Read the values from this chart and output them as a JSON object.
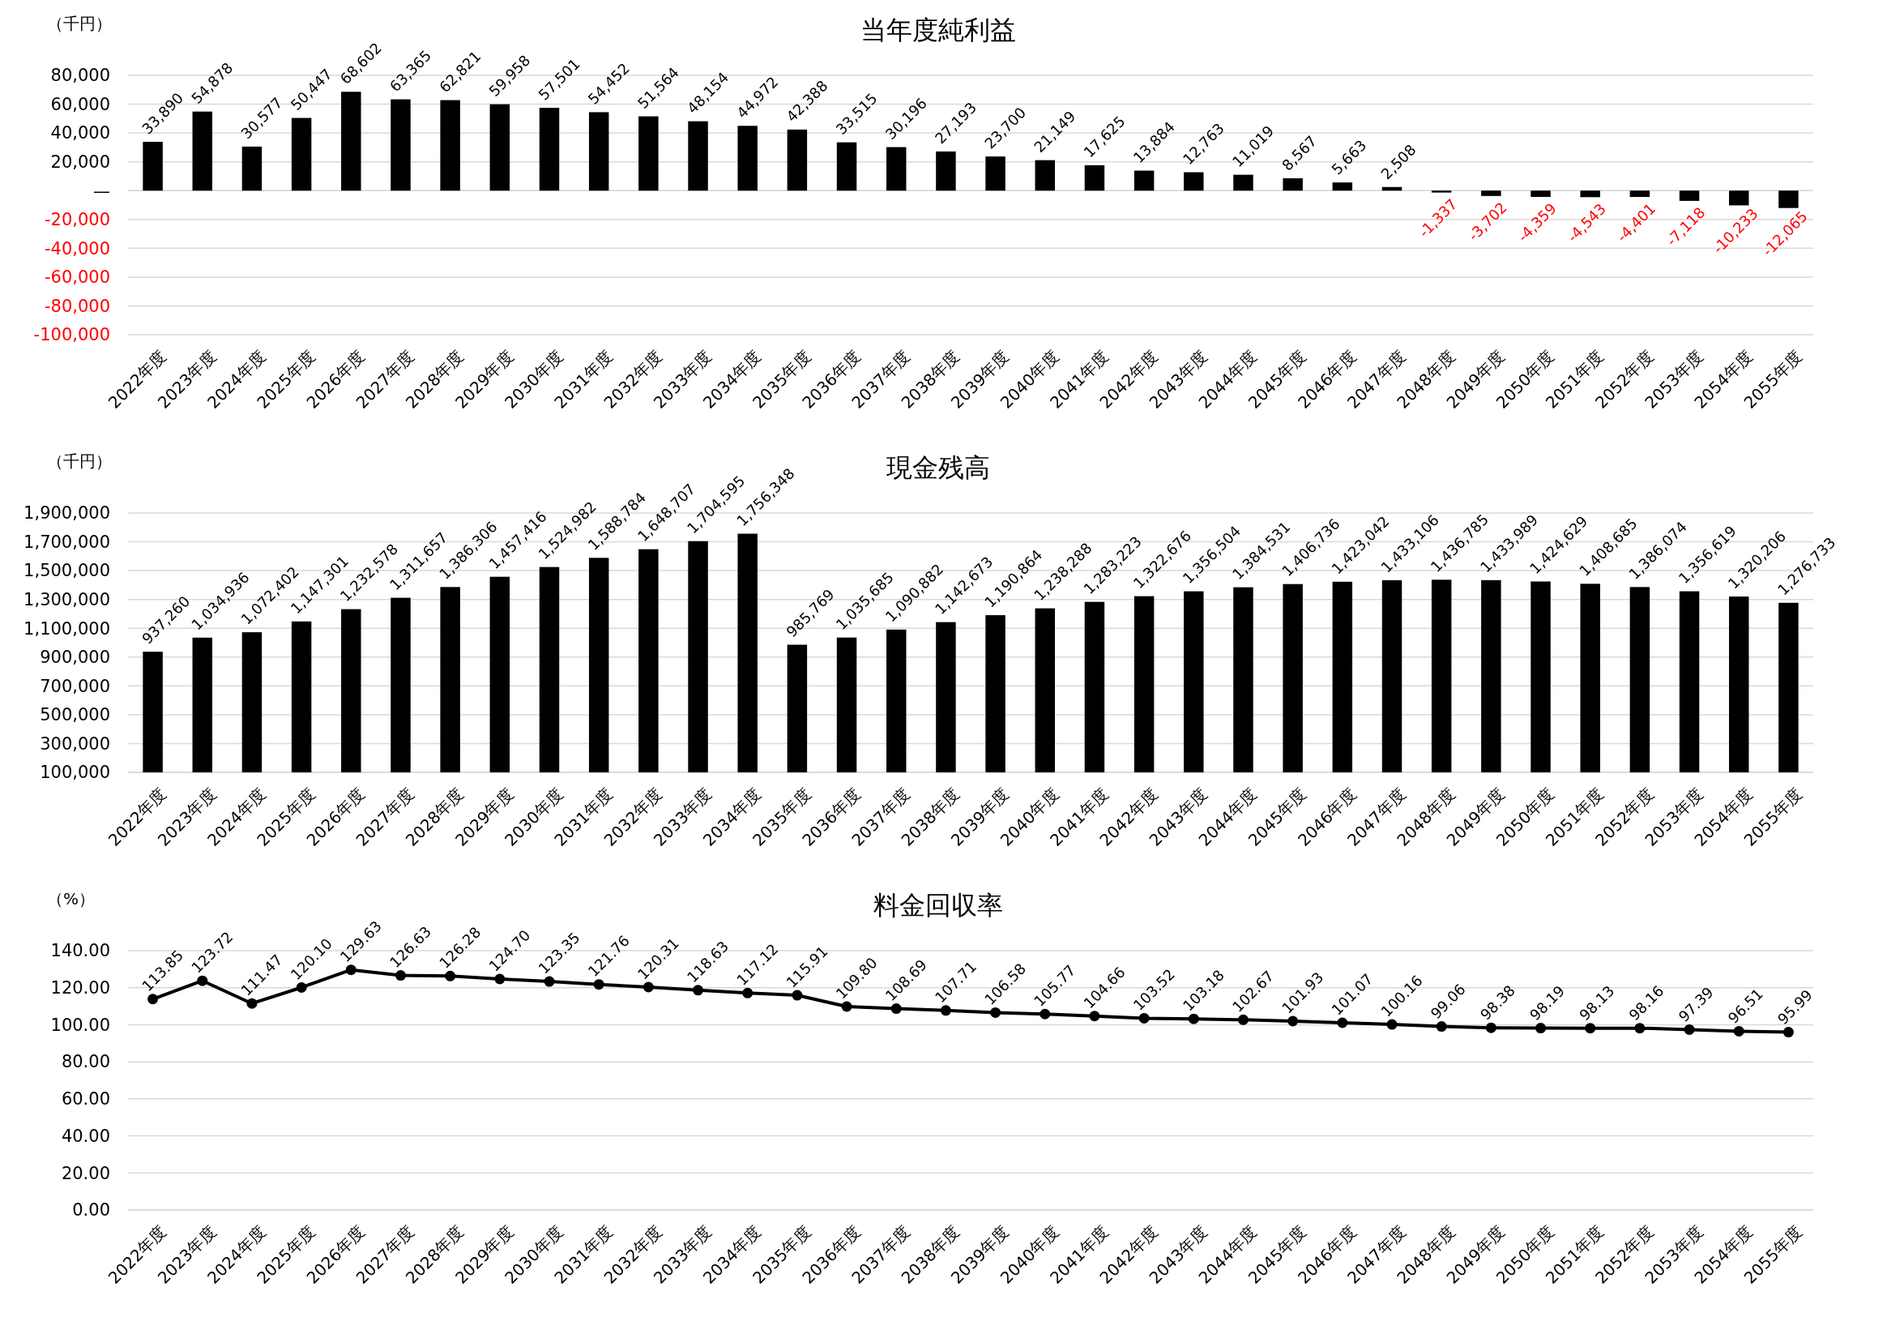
{
  "chart_data": [
    {
      "type": "bar",
      "title": "当年度純利益",
      "ylabel": "（千円）",
      "categories": [
        "2022年度",
        "2023年度",
        "2024年度",
        "2025年度",
        "2026年度",
        "2027年度",
        "2028年度",
        "2029年度",
        "2030年度",
        "2031年度",
        "2032年度",
        "2033年度",
        "2034年度",
        "2035年度",
        "2036年度",
        "2037年度",
        "2038年度",
        "2039年度",
        "2040年度",
        "2041年度",
        "2042年度",
        "2043年度",
        "2044年度",
        "2045年度",
        "2046年度",
        "2047年度",
        "2048年度",
        "2049年度",
        "2050年度",
        "2051年度",
        "2052年度",
        "2053年度",
        "2054年度",
        "2055年度"
      ],
      "values": [
        33890,
        54878,
        30577,
        50447,
        68602,
        63365,
        62821,
        59958,
        57501,
        54452,
        51564,
        48154,
        44972,
        42388,
        33515,
        30196,
        27193,
        23700,
        21149,
        17625,
        13884,
        12763,
        11019,
        8567,
        5663,
        2508,
        -1337,
        -3702,
        -4359,
        -4543,
        -4401,
        -7118,
        -10233,
        -12065
      ],
      "value_labels": [
        "33,890",
        "54,878",
        "30,577",
        "50,447",
        "68,602",
        "63,365",
        "62,821",
        "59,958",
        "57,501",
        "54,452",
        "51,564",
        "48,154",
        "44,972",
        "42,388",
        "33,515",
        "30,196",
        "27,193",
        "23,700",
        "21,149",
        "17,625",
        "13,884",
        "12,763",
        "11,019",
        "8,567",
        "5,663",
        "2,508",
        "-1,337",
        "-3,702",
        "-4,359",
        "-4,543",
        "-4,401",
        "-7,118",
        "-10,233",
        "-12,065"
      ],
      "color": "#000000",
      "ylim": [
        -100000,
        80000
      ],
      "yticks": [
        {
          "value": -100000,
          "label": "-100,000"
        },
        {
          "value": -80000,
          "label": "-80,000"
        },
        {
          "value": -60000,
          "label": "-60,000"
        },
        {
          "value": -40000,
          "label": "-40,000"
        },
        {
          "value": -20000,
          "label": "-20,000"
        },
        {
          "value": 0,
          "label": "—"
        },
        {
          "value": 20000,
          "label": "20,000"
        },
        {
          "value": 40000,
          "label": "40,000"
        },
        {
          "value": 60000,
          "label": "60,000"
        },
        {
          "value": 80000,
          "label": "80,000"
        }
      ],
      "grid": "y"
    },
    {
      "type": "bar",
      "title": "現金残高",
      "ylabel": "（千円）",
      "categories": [
        "2022年度",
        "2023年度",
        "2024年度",
        "2025年度",
        "2026年度",
        "2027年度",
        "2028年度",
        "2029年度",
        "2030年度",
        "2031年度",
        "2032年度",
        "2033年度",
        "2034年度",
        "2035年度",
        "2036年度",
        "2037年度",
        "2038年度",
        "2039年度",
        "2040年度",
        "2041年度",
        "2042年度",
        "2043年度",
        "2044年度",
        "2045年度",
        "2046年度",
        "2047年度",
        "2048年度",
        "2049年度",
        "2050年度",
        "2051年度",
        "2052年度",
        "2053年度",
        "2054年度",
        "2055年度"
      ],
      "values": [
        937260,
        1034936,
        1072402,
        1147301,
        1232578,
        1311657,
        1386306,
        1457416,
        1524982,
        1588784,
        1648707,
        1704595,
        1756348,
        985769,
        1035685,
        1090882,
        1142673,
        1190864,
        1238288,
        1283223,
        1322676,
        1356504,
        1384531,
        1406736,
        1423042,
        1433106,
        1436785,
        1433989,
        1424629,
        1408685,
        1386074,
        1356619,
        1320206,
        1276733
      ],
      "value_labels": [
        "937,260",
        "1,034,936",
        "1,072,402",
        "1,147,301",
        "1,232,578",
        "1,311,657",
        "1,386,306",
        "1,457,416",
        "1,524,982",
        "1,588,784",
        "1,648,707",
        "1,704,595",
        "1,756,348",
        "985,769",
        "1,035,685",
        "1,090,882",
        "1,142,673",
        "1,190,864",
        "1,238,288",
        "1,283,223",
        "1,322,676",
        "1,356,504",
        "1,384,531",
        "1,406,736",
        "1,423,042",
        "1,433,106",
        "1,436,785",
        "1,433,989",
        "1,424,629",
        "1,408,685",
        "1,386,074",
        "1,356,619",
        "1,320,206",
        "1,276,733"
      ],
      "color": "#000000",
      "ylim": [
        100000,
        1900000
      ],
      "yticks": [
        {
          "value": 100000,
          "label": "100,000"
        },
        {
          "value": 300000,
          "label": "300,000"
        },
        {
          "value": 500000,
          "label": "500,000"
        },
        {
          "value": 700000,
          "label": "700,000"
        },
        {
          "value": 900000,
          "label": "900,000"
        },
        {
          "value": 1100000,
          "label": "1,100,000"
        },
        {
          "value": 1300000,
          "label": "1,300,000"
        },
        {
          "value": 1500000,
          "label": "1,500,000"
        },
        {
          "value": 1700000,
          "label": "1,700,000"
        },
        {
          "value": 1900000,
          "label": "1,900,000"
        }
      ],
      "grid": "y"
    },
    {
      "type": "line",
      "title": "料金回収率",
      "ylabel": "（%）",
      "categories": [
        "2022年度",
        "2023年度",
        "2024年度",
        "2025年度",
        "2026年度",
        "2027年度",
        "2028年度",
        "2029年度",
        "2030年度",
        "2031年度",
        "2032年度",
        "2033年度",
        "2034年度",
        "2035年度",
        "2036年度",
        "2037年度",
        "2038年度",
        "2039年度",
        "2040年度",
        "2041年度",
        "2042年度",
        "2043年度",
        "2044年度",
        "2045年度",
        "2046年度",
        "2047年度",
        "2048年度",
        "2049年度",
        "2050年度",
        "2051年度",
        "2052年度",
        "2053年度",
        "2054年度",
        "2055年度"
      ],
      "values": [
        113.85,
        123.72,
        111.47,
        120.1,
        129.63,
        126.63,
        126.28,
        124.7,
        123.35,
        121.76,
        120.31,
        118.63,
        117.12,
        115.91,
        109.8,
        108.69,
        107.71,
        106.58,
        105.77,
        104.66,
        103.52,
        103.18,
        102.67,
        101.93,
        101.07,
        100.16,
        99.06,
        98.38,
        98.19,
        98.13,
        98.16,
        97.39,
        96.51,
        95.99
      ],
      "value_labels": [
        "113.85",
        "123.72",
        "111.47",
        "120.10",
        "129.63",
        "126.63",
        "126.28",
        "124.70",
        "123.35",
        "121.76",
        "120.31",
        "118.63",
        "117.12",
        "115.91",
        "109.80",
        "108.69",
        "107.71",
        "106.58",
        "105.77",
        "104.66",
        "103.52",
        "103.18",
        "102.67",
        "101.93",
        "101.07",
        "100.16",
        "99.06",
        "98.38",
        "98.19",
        "98.13",
        "98.16",
        "97.39",
        "96.51",
        "95.99"
      ],
      "color": "#000000",
      "ylim": [
        0,
        140
      ],
      "yticks": [
        {
          "value": 0,
          "label": "0.00"
        },
        {
          "value": 20,
          "label": "20.00"
        },
        {
          "value": 40,
          "label": "40.00"
        },
        {
          "value": 60,
          "label": "60.00"
        },
        {
          "value": 80,
          "label": "80.00"
        },
        {
          "value": 100,
          "label": "100.00"
        },
        {
          "value": 120,
          "label": "120.00"
        },
        {
          "value": 140,
          "label": "140.00"
        }
      ],
      "grid": "y",
      "marker": "circle",
      "line_style": "solid"
    }
  ]
}
